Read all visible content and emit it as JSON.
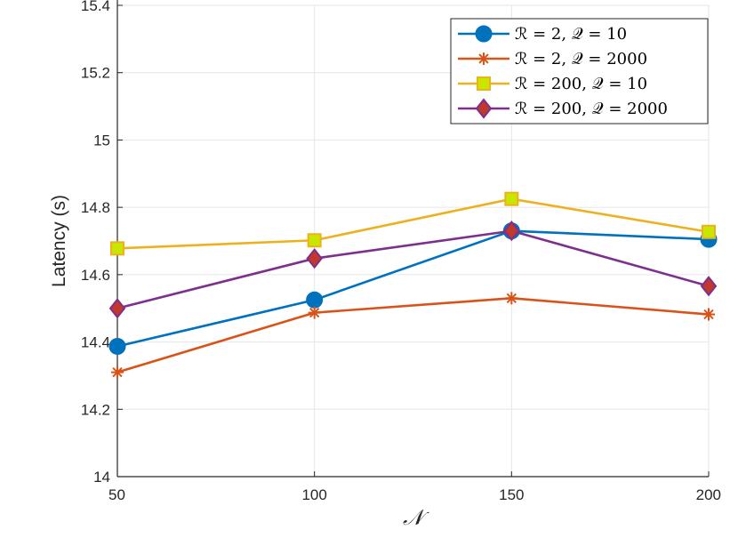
{
  "chart_data": {
    "type": "line",
    "title": "",
    "xlabel": "𝒩",
    "ylabel": "Latency (s)",
    "x": [
      50,
      100,
      150,
      200
    ],
    "xlim": [
      50,
      200
    ],
    "ylim": [
      14,
      15.4
    ],
    "xticks": [
      "50",
      "100",
      "150",
      "200"
    ],
    "yticks": [
      "14",
      "14.2",
      "14.4",
      "14.6",
      "14.8",
      "15",
      "15.2",
      "15.4"
    ],
    "grid": true,
    "legend_position": "top-right",
    "series": [
      {
        "name": "ℛ = 2, 𝒬 = 10",
        "values": [
          14.387,
          14.525,
          14.73,
          14.705
        ],
        "color": "#0072BD",
        "marker": "circle",
        "marker_fill": "#0072BD"
      },
      {
        "name": "ℛ = 2, 𝒬 = 2000",
        "values": [
          14.31,
          14.487,
          14.53,
          14.482
        ],
        "color": "#D95319",
        "marker": "asterisk",
        "marker_fill": "#D95319"
      },
      {
        "name": "ℛ = 200, 𝒬 = 10",
        "values": [
          14.678,
          14.702,
          14.825,
          14.727
        ],
        "color": "#EDB120",
        "marker": "square",
        "marker_fill": "#C8E600"
      },
      {
        "name": "ℛ = 200, 𝒬 = 2000",
        "values": [
          14.5,
          14.648,
          14.73,
          14.566
        ],
        "color": "#7E2F8E",
        "marker": "diamond",
        "marker_fill": "#C0392B"
      }
    ]
  }
}
